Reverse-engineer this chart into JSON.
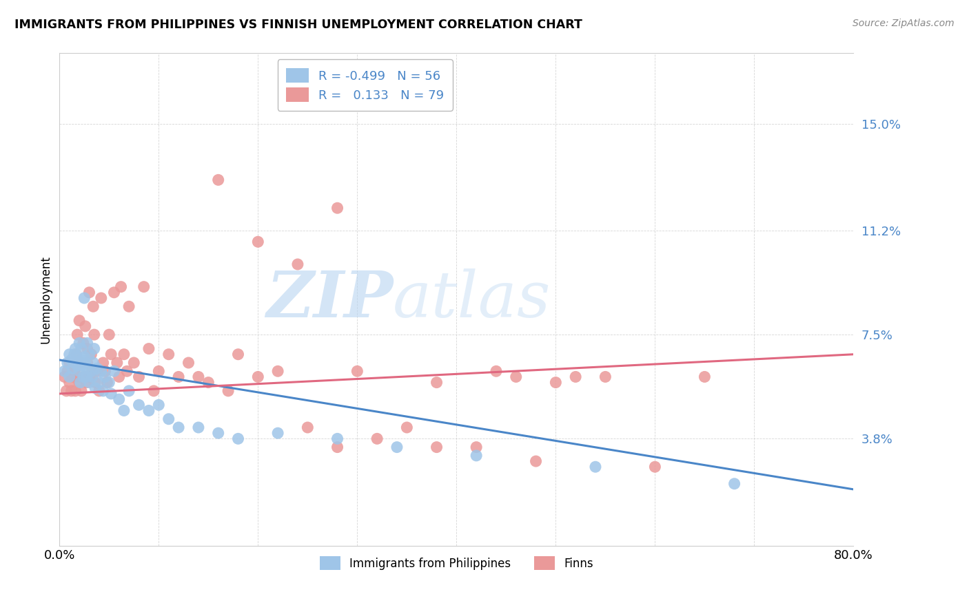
{
  "title": "IMMIGRANTS FROM PHILIPPINES VS FINNISH UNEMPLOYMENT CORRELATION CHART",
  "source": "Source: ZipAtlas.com",
  "ylabel": "Unemployment",
  "yticks": [
    0.038,
    0.075,
    0.112,
    0.15
  ],
  "ytick_labels": [
    "3.8%",
    "7.5%",
    "11.2%",
    "15.0%"
  ],
  "xmin": 0.0,
  "xmax": 0.8,
  "ymin": 0.0,
  "ymax": 0.175,
  "legend_blue_R": "-0.499",
  "legend_blue_N": "56",
  "legend_pink_R": "0.133",
  "legend_pink_N": "79",
  "legend_label_blue": "Immigrants from Philippines",
  "legend_label_pink": "Finns",
  "blue_color": "#9fc5e8",
  "pink_color": "#ea9999",
  "line_blue": "#4a86c8",
  "line_pink": "#e06880",
  "blue_line_start_y": 0.066,
  "blue_line_end_y": 0.02,
  "pink_line_start_y": 0.054,
  "pink_line_end_y": 0.068,
  "blue_scatter_x": [
    0.005,
    0.008,
    0.01,
    0.01,
    0.012,
    0.013,
    0.015,
    0.015,
    0.016,
    0.018,
    0.018,
    0.02,
    0.02,
    0.021,
    0.022,
    0.022,
    0.023,
    0.024,
    0.025,
    0.025,
    0.026,
    0.027,
    0.028,
    0.028,
    0.03,
    0.03,
    0.032,
    0.033,
    0.034,
    0.035,
    0.036,
    0.038,
    0.04,
    0.042,
    0.044,
    0.046,
    0.05,
    0.052,
    0.055,
    0.06,
    0.065,
    0.07,
    0.08,
    0.09,
    0.1,
    0.11,
    0.12,
    0.14,
    0.16,
    0.18,
    0.22,
    0.28,
    0.34,
    0.42,
    0.54,
    0.68
  ],
  "blue_scatter_y": [
    0.062,
    0.065,
    0.06,
    0.068,
    0.066,
    0.063,
    0.068,
    0.065,
    0.07,
    0.064,
    0.067,
    0.062,
    0.072,
    0.058,
    0.066,
    0.07,
    0.064,
    0.06,
    0.067,
    0.088,
    0.065,
    0.06,
    0.063,
    0.072,
    0.058,
    0.068,
    0.062,
    0.06,
    0.065,
    0.07,
    0.056,
    0.063,
    0.058,
    0.062,
    0.055,
    0.06,
    0.058,
    0.054,
    0.062,
    0.052,
    0.048,
    0.055,
    0.05,
    0.048,
    0.05,
    0.045,
    0.042,
    0.042,
    0.04,
    0.038,
    0.04,
    0.038,
    0.035,
    0.032,
    0.028,
    0.022
  ],
  "pink_scatter_x": [
    0.005,
    0.007,
    0.008,
    0.01,
    0.01,
    0.012,
    0.014,
    0.015,
    0.016,
    0.017,
    0.018,
    0.019,
    0.02,
    0.02,
    0.022,
    0.022,
    0.024,
    0.025,
    0.026,
    0.027,
    0.028,
    0.028,
    0.03,
    0.03,
    0.032,
    0.033,
    0.034,
    0.035,
    0.036,
    0.038,
    0.04,
    0.042,
    0.044,
    0.046,
    0.048,
    0.05,
    0.052,
    0.055,
    0.058,
    0.06,
    0.062,
    0.065,
    0.068,
    0.07,
    0.075,
    0.08,
    0.085,
    0.09,
    0.095,
    0.1,
    0.11,
    0.12,
    0.13,
    0.14,
    0.15,
    0.16,
    0.17,
    0.18,
    0.2,
    0.22,
    0.25,
    0.28,
    0.3,
    0.32,
    0.35,
    0.38,
    0.42,
    0.46,
    0.5,
    0.55,
    0.2,
    0.24,
    0.28,
    0.38,
    0.44,
    0.48,
    0.52,
    0.6,
    0.65
  ],
  "pink_scatter_y": [
    0.06,
    0.055,
    0.062,
    0.058,
    0.065,
    0.055,
    0.06,
    0.062,
    0.055,
    0.068,
    0.075,
    0.06,
    0.058,
    0.08,
    0.065,
    0.055,
    0.072,
    0.06,
    0.078,
    0.058,
    0.065,
    0.07,
    0.06,
    0.09,
    0.068,
    0.062,
    0.085,
    0.075,
    0.058,
    0.062,
    0.055,
    0.088,
    0.065,
    0.062,
    0.058,
    0.075,
    0.068,
    0.09,
    0.065,
    0.06,
    0.092,
    0.068,
    0.062,
    0.085,
    0.065,
    0.06,
    0.092,
    0.07,
    0.055,
    0.062,
    0.068,
    0.06,
    0.065,
    0.06,
    0.058,
    0.13,
    0.055,
    0.068,
    0.06,
    0.062,
    0.042,
    0.035,
    0.062,
    0.038,
    0.042,
    0.058,
    0.035,
    0.06,
    0.058,
    0.06,
    0.108,
    0.1,
    0.12,
    0.035,
    0.062,
    0.03,
    0.06,
    0.028,
    0.06
  ]
}
